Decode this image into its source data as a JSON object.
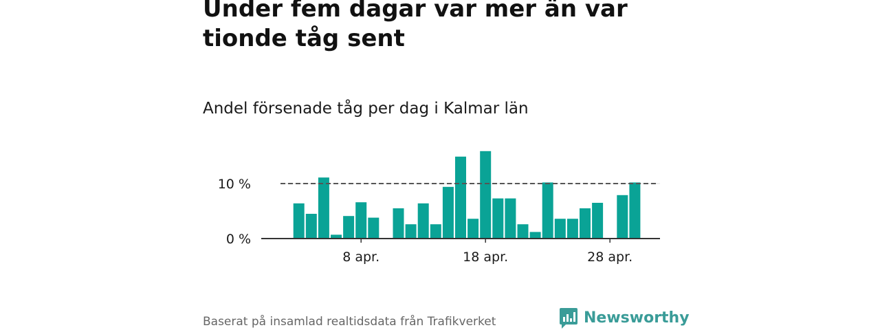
{
  "title": "Under fem dagar var mer än var tionde tåg sent",
  "subtitle": "Andel försenade tåg per dag i Kalmar län",
  "source": "Baserat på insamlad realtidsdata från Trafikverket",
  "brand": {
    "name": "Newsworthy",
    "color": "#3a9c98"
  },
  "colors": {
    "bar": "#0aa396",
    "reference_line": "#555555",
    "grid": "#dddddd",
    "axis": "#333333"
  },
  "chart_data": {
    "type": "bar",
    "title": "Under fem dagar var mer än var tionde tåg sent",
    "subtitle": "Andel försenade tåg per dag i Kalmar län",
    "x_unit": "day of April",
    "x": [
      1,
      2,
      3,
      4,
      5,
      6,
      7,
      8,
      9,
      10,
      11,
      12,
      13,
      14,
      15,
      16,
      17,
      18,
      19,
      20,
      21,
      22,
      23,
      24,
      25,
      26,
      27,
      28,
      29,
      30
    ],
    "values": [
      null,
      null,
      6.4,
      4.5,
      11.1,
      0.7,
      4.1,
      6.6,
      3.8,
      null,
      5.5,
      2.6,
      6.4,
      2.6,
      9.4,
      14.9,
      3.6,
      15.9,
      7.3,
      7.3,
      2.6,
      1.2,
      10.2,
      3.6,
      3.6,
      5.5,
      6.5,
      null,
      7.9,
      10.2
    ],
    "xticks": [
      {
        "x": 8,
        "label": "8 apr."
      },
      {
        "x": 18,
        "label": "18 apr."
      },
      {
        "x": 28,
        "label": "28 apr."
      }
    ],
    "yticks": [
      {
        "y": 0,
        "label": "0 %"
      },
      {
        "y": 10,
        "label": "10 %"
      }
    ],
    "reference_line": {
      "y": 10,
      "style": "dashed"
    },
    "ylim": [
      0,
      16
    ],
    "ylabel": "",
    "xlabel": "",
    "grid": true,
    "legend": "none"
  }
}
